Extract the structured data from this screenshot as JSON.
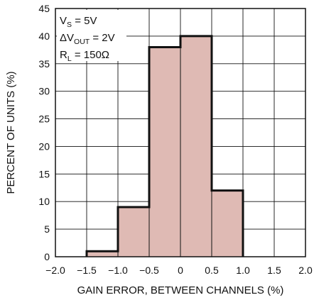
{
  "chart_data": {
    "type": "bar",
    "subtype": "histogram",
    "xlabel": "GAIN ERROR, BETWEEN CHANNELS (%)",
    "ylabel": "PERCENT OF UNITS (%)",
    "xlim": [
      -2.0,
      2.0
    ],
    "ylim": [
      0,
      45
    ],
    "x_ticks": [
      "−2.0",
      "−1.5",
      "−1.0",
      "−0.5",
      "0",
      "0.5",
      "1.0",
      "1.5",
      "2.0"
    ],
    "y_ticks": [
      "0",
      "5",
      "10",
      "15",
      "20",
      "25",
      "30",
      "35",
      "40",
      "45"
    ],
    "grid": true,
    "bins": [
      {
        "from": -1.5,
        "to": -1.0,
        "value": 1
      },
      {
        "from": -1.0,
        "to": -0.5,
        "value": 9
      },
      {
        "from": -0.5,
        "to": 0.0,
        "value": 38
      },
      {
        "from": 0.0,
        "to": 0.5,
        "value": 40
      },
      {
        "from": 0.5,
        "to": 1.0,
        "value": 12
      }
    ],
    "annotations": [
      {
        "main": "V",
        "sub": "S",
        "rest": " = 5V"
      },
      {
        "main": "ΔV",
        "sub": "OUT",
        "rest": " = 2V"
      },
      {
        "main": "R",
        "sub": "L",
        "rest": " = 150Ω"
      }
    ],
    "colors": {
      "fill": "#dfbab4",
      "outline": "#111111",
      "grid": "#111111"
    }
  }
}
